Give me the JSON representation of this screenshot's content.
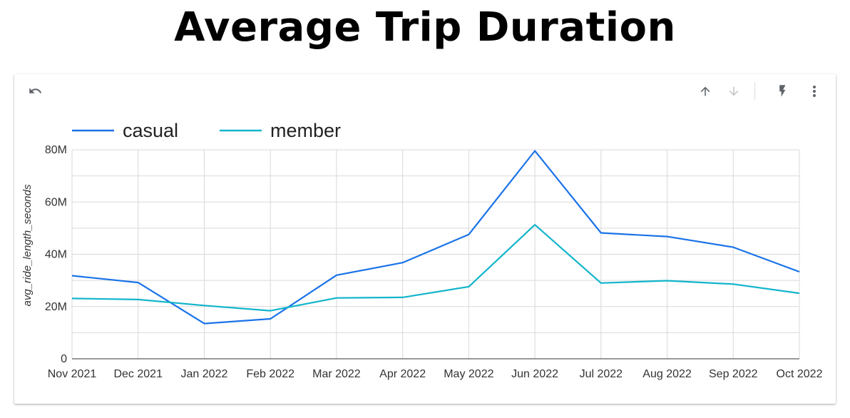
{
  "page": {
    "title": "Average Trip Duration"
  },
  "toolbar": {
    "icons": [
      "undo-icon",
      "arrow-up-icon",
      "arrow-down-icon",
      "bolt-icon",
      "more-vert-icon"
    ]
  },
  "colors": {
    "casual": "#1a73e8",
    "member": "#12b5cb",
    "grid": "#d9d9d9",
    "axis": "#333333"
  },
  "chart_data": {
    "type": "line",
    "title": "",
    "xlabel": "",
    "ylabel": "avg_ride_length_seconds",
    "categories": [
      "Nov 2021",
      "Dec 2021",
      "Jan 2022",
      "Feb 2022",
      "Mar 2022",
      "Apr 2022",
      "May 2022",
      "Jun 2022",
      "Jul 2022",
      "Aug 2022",
      "Sep 2022",
      "Oct 2022"
    ],
    "y_ticks": [
      0,
      20,
      40,
      60,
      80
    ],
    "y_tick_labels": [
      "0",
      "20M",
      "40M",
      "60M",
      "80M"
    ],
    "ylim": [
      0,
      80
    ],
    "y_unit": "M",
    "grid": true,
    "legend_position": "top-left",
    "series": [
      {
        "name": "casual",
        "values": [
          31.8,
          29.2,
          13.5,
          15.3,
          32.0,
          36.8,
          47.6,
          79.6,
          48.2,
          46.8,
          42.7,
          33.3
        ]
      },
      {
        "name": "member",
        "values": [
          23.1,
          22.7,
          20.4,
          18.4,
          23.3,
          23.5,
          27.6,
          51.3,
          29.0,
          29.9,
          28.6,
          25.1
        ]
      }
    ]
  }
}
